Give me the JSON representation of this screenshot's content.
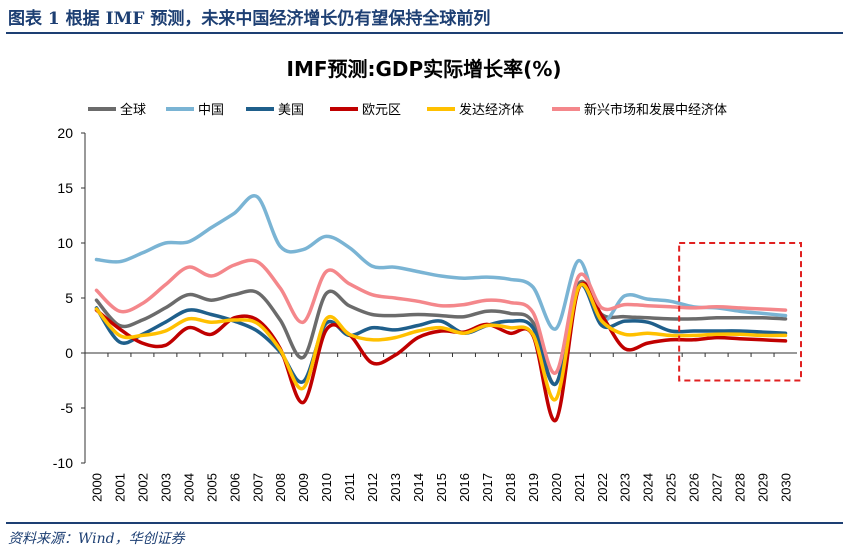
{
  "figure": {
    "title": "图表 1   根据 IMF 预测，未来中国经济增长仍有望保持全球前列",
    "source": "资料来源：Wind，华创证券"
  },
  "chart_data": {
    "type": "line",
    "title": "IMF预测:GDP实际增长率(%)",
    "xlabel": "",
    "ylabel": "",
    "ylim": [
      -10,
      20
    ],
    "yticks": [
      -10,
      -5,
      0,
      5,
      10,
      15,
      20
    ],
    "grid": false,
    "legend_position": "top",
    "x": [
      "2000",
      "2001",
      "2002",
      "2003",
      "2004",
      "2005",
      "2006",
      "2007",
      "2008",
      "2009",
      "2010",
      "2011",
      "2012",
      "2013",
      "2014",
      "2015",
      "2016",
      "2017",
      "2018",
      "2019",
      "2020",
      "2021",
      "2022",
      "2023",
      "2024",
      "2025",
      "2026",
      "2027",
      "2028",
      "2029",
      "2030"
    ],
    "series": [
      {
        "name": "全球",
        "color": "#6b6b6b",
        "values": [
          4.8,
          2.5,
          3.0,
          4.1,
          5.3,
          4.8,
          5.3,
          5.5,
          3.0,
          -0.4,
          5.4,
          4.3,
          3.5,
          3.4,
          3.5,
          3.4,
          3.3,
          3.8,
          3.6,
          2.8,
          -2.8,
          6.3,
          3.5,
          3.3,
          3.2,
          3.1,
          3.1,
          3.2,
          3.2,
          3.2,
          3.1
        ]
      },
      {
        "name": "中国",
        "color": "#7ab4d4",
        "values": [
          8.5,
          8.3,
          9.1,
          10.0,
          10.1,
          11.4,
          12.7,
          14.2,
          9.7,
          9.4,
          10.6,
          9.6,
          7.9,
          7.8,
          7.4,
          7.0,
          6.8,
          6.9,
          6.7,
          6.0,
          2.2,
          8.4,
          3.0,
          5.2,
          4.9,
          4.7,
          4.2,
          4.1,
          3.8,
          3.6,
          3.4
        ]
      },
      {
        "name": "美国",
        "color": "#1f5f8b",
        "values": [
          4.1,
          1.0,
          1.7,
          2.8,
          3.9,
          3.5,
          2.9,
          2.0,
          0.1,
          -2.6,
          2.7,
          1.6,
          2.3,
          2.1,
          2.5,
          2.9,
          1.8,
          2.5,
          2.9,
          2.3,
          -2.8,
          6.1,
          2.5,
          2.9,
          2.8,
          2.0,
          2.0,
          2.0,
          2.0,
          1.9,
          1.8
        ]
      },
      {
        "name": "欧元区",
        "color": "#c00000",
        "values": [
          3.9,
          2.2,
          0.9,
          0.7,
          2.3,
          1.7,
          3.2,
          3.0,
          0.4,
          -4.5,
          2.1,
          1.7,
          -0.9,
          -0.2,
          1.4,
          2.0,
          1.9,
          2.6,
          1.8,
          1.6,
          -6.1,
          5.9,
          3.4,
          0.4,
          0.9,
          1.2,
          1.2,
          1.4,
          1.3,
          1.2,
          1.1
        ]
      },
      {
        "name": "发达经济体",
        "color": "#ffc000",
        "values": [
          4.0,
          1.6,
          1.6,
          2.0,
          3.1,
          2.8,
          3.0,
          2.7,
          0.3,
          -3.2,
          3.1,
          1.7,
          1.2,
          1.4,
          2.0,
          2.3,
          1.8,
          2.5,
          2.3,
          1.7,
          -4.2,
          6.0,
          2.9,
          1.7,
          1.8,
          1.6,
          1.6,
          1.7,
          1.7,
          1.6,
          1.6
        ]
      },
      {
        "name": "新兴市场和发展中经济体",
        "color": "#f4878b",
        "values": [
          5.7,
          3.8,
          4.5,
          6.2,
          7.8,
          7.0,
          8.0,
          8.3,
          5.9,
          2.8,
          7.4,
          6.3,
          5.3,
          5.0,
          4.7,
          4.3,
          4.4,
          4.8,
          4.6,
          3.7,
          -1.8,
          7.0,
          4.1,
          4.4,
          4.3,
          4.2,
          4.1,
          4.2,
          4.1,
          4.0,
          3.9
        ]
      }
    ]
  },
  "forecast_box": {
    "start": "2026",
    "end": "2030",
    "color": "#e02020"
  }
}
